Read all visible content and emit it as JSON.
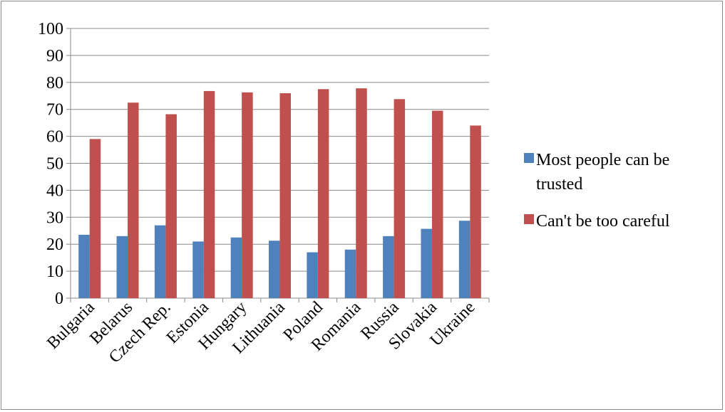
{
  "chart_data": {
    "type": "bar",
    "title": "",
    "xlabel": "",
    "ylabel": "",
    "ylim": [
      0,
      100
    ],
    "yticks": [
      0,
      10,
      20,
      30,
      40,
      50,
      60,
      70,
      80,
      90,
      100
    ],
    "grid": true,
    "legend_position": "right",
    "categories": [
      "Bulgaria",
      "Belarus",
      "Czech Rep.",
      "Estonia",
      "Hungary",
      "Lithuania",
      "Poland",
      "Romania",
      "Russia",
      "Slovakia",
      "Ukraine"
    ],
    "series": [
      {
        "name": "Most people can be trusted",
        "legend_lines": [
          "Most people can be",
          "trusted"
        ],
        "color": "#4f81bd",
        "values": [
          23.5,
          23,
          27,
          21,
          22.5,
          21.3,
          17,
          18,
          23,
          25.7,
          28.7
        ]
      },
      {
        "name": "Can't be too careful",
        "legend_lines": [
          "Can't be too careful"
        ],
        "color": "#c0504d",
        "values": [
          59,
          72.5,
          68.2,
          76.8,
          76.3,
          76,
          77.5,
          77.8,
          73.8,
          69.5,
          64
        ]
      }
    ]
  }
}
